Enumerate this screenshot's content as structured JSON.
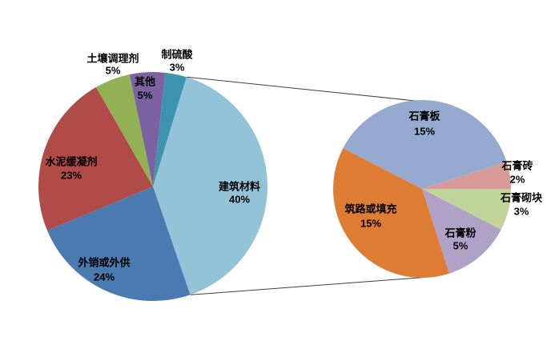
{
  "page": {
    "background_color": "#ffffff"
  },
  "chart_data": {
    "type": "pie",
    "variant": "pie-of-pie",
    "title": "",
    "legend": "none",
    "connector_line_color": "#3f3f3f",
    "label_text_color": "#000000",
    "primary_pie": {
      "unit": "%",
      "total": 100,
      "slices": [
        {
          "label": "建筑材料",
          "value": 40,
          "pct_label": "40%",
          "color": "#93C3D6"
        },
        {
          "label": "外销或外供",
          "value": 24,
          "pct_label": "24%",
          "color": "#4B7AB1"
        },
        {
          "label": "水泥缓凝剂",
          "value": 23,
          "pct_label": "23%",
          "color": "#B14B47"
        },
        {
          "label": "土壤调理剂",
          "value": 5,
          "pct_label": "5%",
          "color": "#92B054"
        },
        {
          "label": "其他",
          "value": 5,
          "pct_label": "5%",
          "color": "#7C61A3"
        },
        {
          "label": "制硫酸",
          "value": 3,
          "pct_label": "3%",
          "color": "#3E93AF"
        }
      ]
    },
    "secondary_pie": {
      "parent_slice": "建筑材料",
      "unit": "%",
      "total": 40,
      "slices": [
        {
          "label": "石膏板",
          "value": 15,
          "pct_label": "15%",
          "color": "#96AACF"
        },
        {
          "label": "石膏砖",
          "value": 2,
          "pct_label": "2%",
          "color": "#D79A98"
        },
        {
          "label": "石膏砌块",
          "value": 3,
          "pct_label": "3%",
          "color": "#C0D49A"
        },
        {
          "label": "石膏粉",
          "value": 5,
          "pct_label": "5%",
          "color": "#B0A1C7"
        },
        {
          "label": "筑路或填充",
          "value": 15,
          "pct_label": "15%",
          "color": "#DF7C33"
        }
      ]
    }
  }
}
